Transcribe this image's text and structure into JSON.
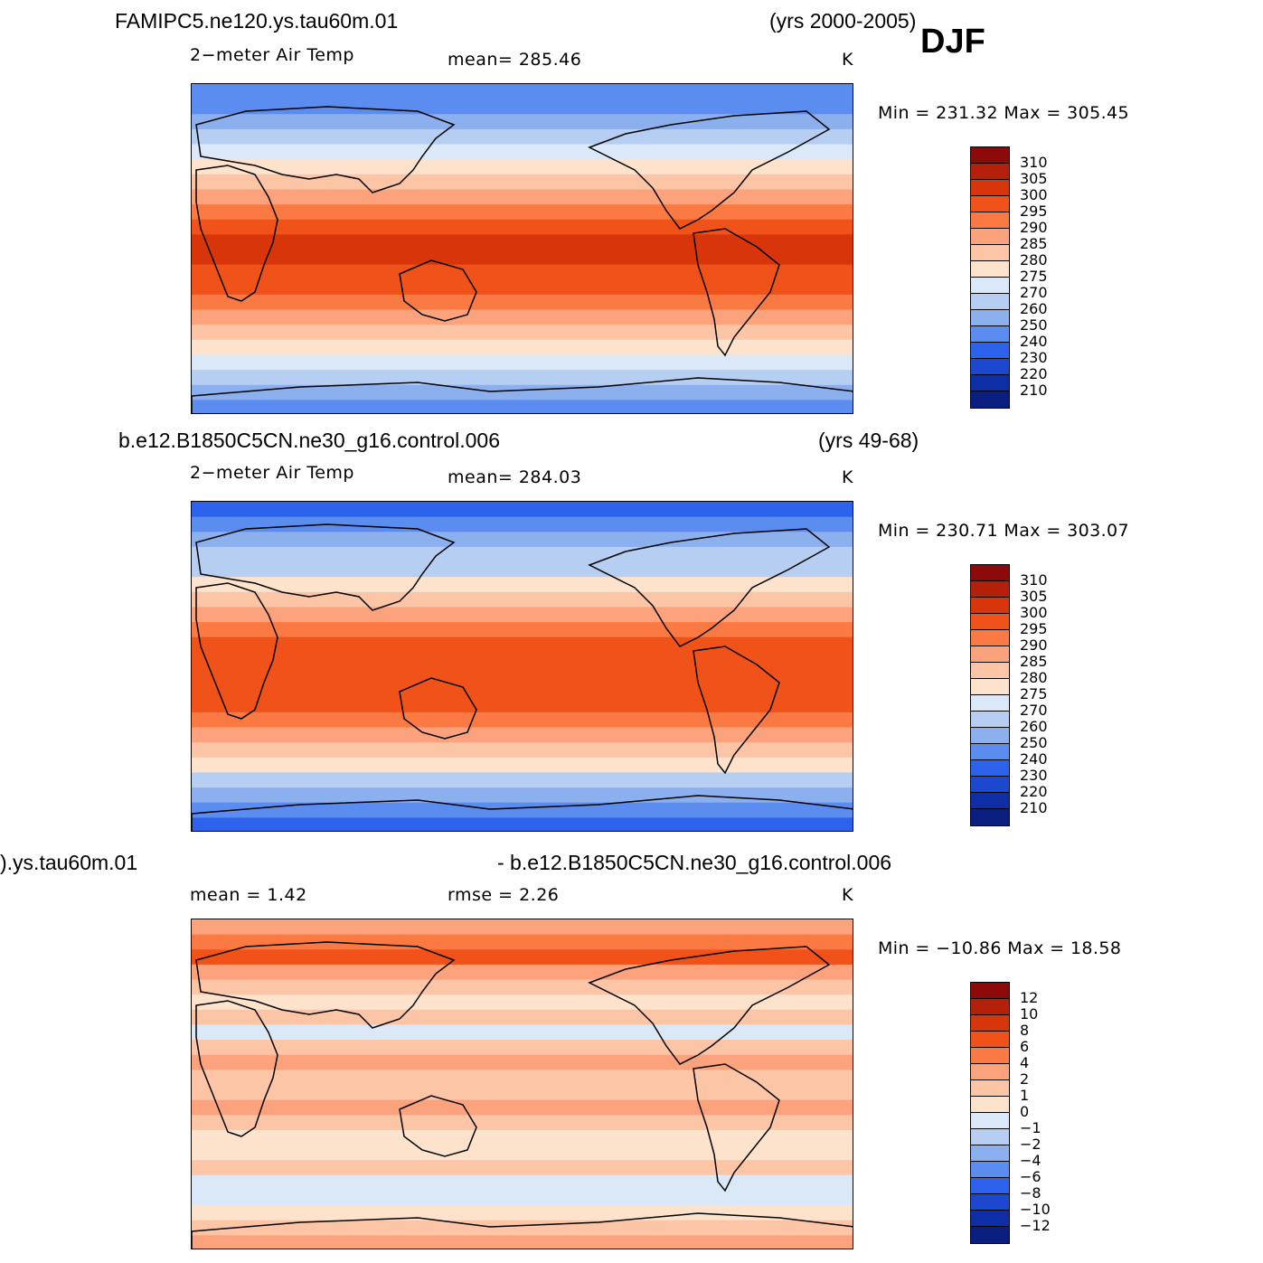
{
  "season": "DJF",
  "chart_data": [
    {
      "type": "heatmap",
      "title": "FAMIPC5.ne120.ys.tau60m.01",
      "years": "(yrs 2000-2005)",
      "variable": "2−meter Air Temp",
      "stat_left": "mean=  285.46",
      "stat_right": "",
      "units": "K",
      "minmax": "Min  =  231.32  Max  =  305.45",
      "mean": 285.46,
      "min": 231.32,
      "max": 305.45,
      "colorbar_labels": [
        "310",
        "305",
        "300",
        "295",
        "290",
        "285",
        "280",
        "275",
        "270",
        "260",
        "250",
        "240",
        "230",
        "220",
        "210"
      ],
      "colorbar_colors": [
        "#8c0a0a",
        "#b5200a",
        "#d8360a",
        "#f0521a",
        "#fb7a43",
        "#fca27c",
        "#fcc5a6",
        "#fde2cc",
        "#dbe8f7",
        "#b6cef2",
        "#8cb0ee",
        "#5b8cf0",
        "#2d63ec",
        "#1c48cf",
        "#0e2ea8",
        "#0a1e80"
      ],
      "zonal_profile_K": [
        240,
        245,
        252,
        262,
        270,
        276,
        282,
        288,
        293,
        297,
        300,
        300,
        298,
        296,
        293,
        288,
        282,
        276,
        270,
        262,
        252,
        240
      ]
    },
    {
      "type": "heatmap",
      "title": "b.e12.B1850C5CN.ne30_g16.control.006",
      "years": "(yrs 49-68)",
      "variable": "2−meter Air Temp",
      "stat_left": "mean=  284.03",
      "stat_right": "",
      "units": "K",
      "minmax": "Min  =  230.71  Max  =  303.07",
      "mean": 284.03,
      "min": 230.71,
      "max": 303.07,
      "colorbar_labels": [
        "310",
        "305",
        "300",
        "295",
        "290",
        "285",
        "280",
        "275",
        "270",
        "260",
        "250",
        "240",
        "230",
        "220",
        "210"
      ],
      "colorbar_colors": [
        "#8c0a0a",
        "#b5200a",
        "#d8360a",
        "#f0521a",
        "#fb7a43",
        "#fca27c",
        "#fcc5a6",
        "#fde2cc",
        "#dbe8f7",
        "#b6cef2",
        "#8cb0ee",
        "#5b8cf0",
        "#2d63ec",
        "#1c48cf",
        "#0e2ea8",
        "#0a1e80"
      ],
      "zonal_profile_K": [
        238,
        243,
        250,
        260,
        268,
        275,
        281,
        287,
        292,
        296,
        299,
        299,
        297,
        295,
        292,
        287,
        281,
        275,
        268,
        258,
        248,
        238
      ]
    },
    {
      "type": "heatmap",
      "title": ").ys.tau60m.01",
      "title_right": "- b.e12.B1850C5CN.ne30_g16.control.006",
      "years": "",
      "variable": "mean =     1.42",
      "stat_left": "rmse  =     2.26",
      "stat_right": "",
      "units": "K",
      "minmax": "Min  =  −10.86  Max  =    18.58",
      "mean": 1.42,
      "rmse": 2.26,
      "min": -10.86,
      "max": 18.58,
      "colorbar_labels": [
        "12",
        "10",
        "8",
        "6",
        "4",
        "2",
        "1",
        "0",
        "−1",
        "−2",
        "−4",
        "−6",
        "−8",
        "−10",
        "−12"
      ],
      "colorbar_colors": [
        "#8c0a0a",
        "#b5200a",
        "#d8360a",
        "#f0521a",
        "#fb7a43",
        "#fca27c",
        "#fcc5a6",
        "#fde2cc",
        "#dbe8f7",
        "#b6cef2",
        "#8cb0ee",
        "#5b8cf0",
        "#2d63ec",
        "#1c48cf",
        "#0e2ea8",
        "#0a1e80"
      ],
      "zonal_profile_K": [
        2,
        4,
        6,
        2,
        1,
        0.5,
        1,
        -0.5,
        1,
        2,
        1,
        1,
        2,
        1,
        0.5,
        0.5,
        1,
        -0.5,
        -1,
        0.5,
        1,
        2
      ]
    }
  ]
}
